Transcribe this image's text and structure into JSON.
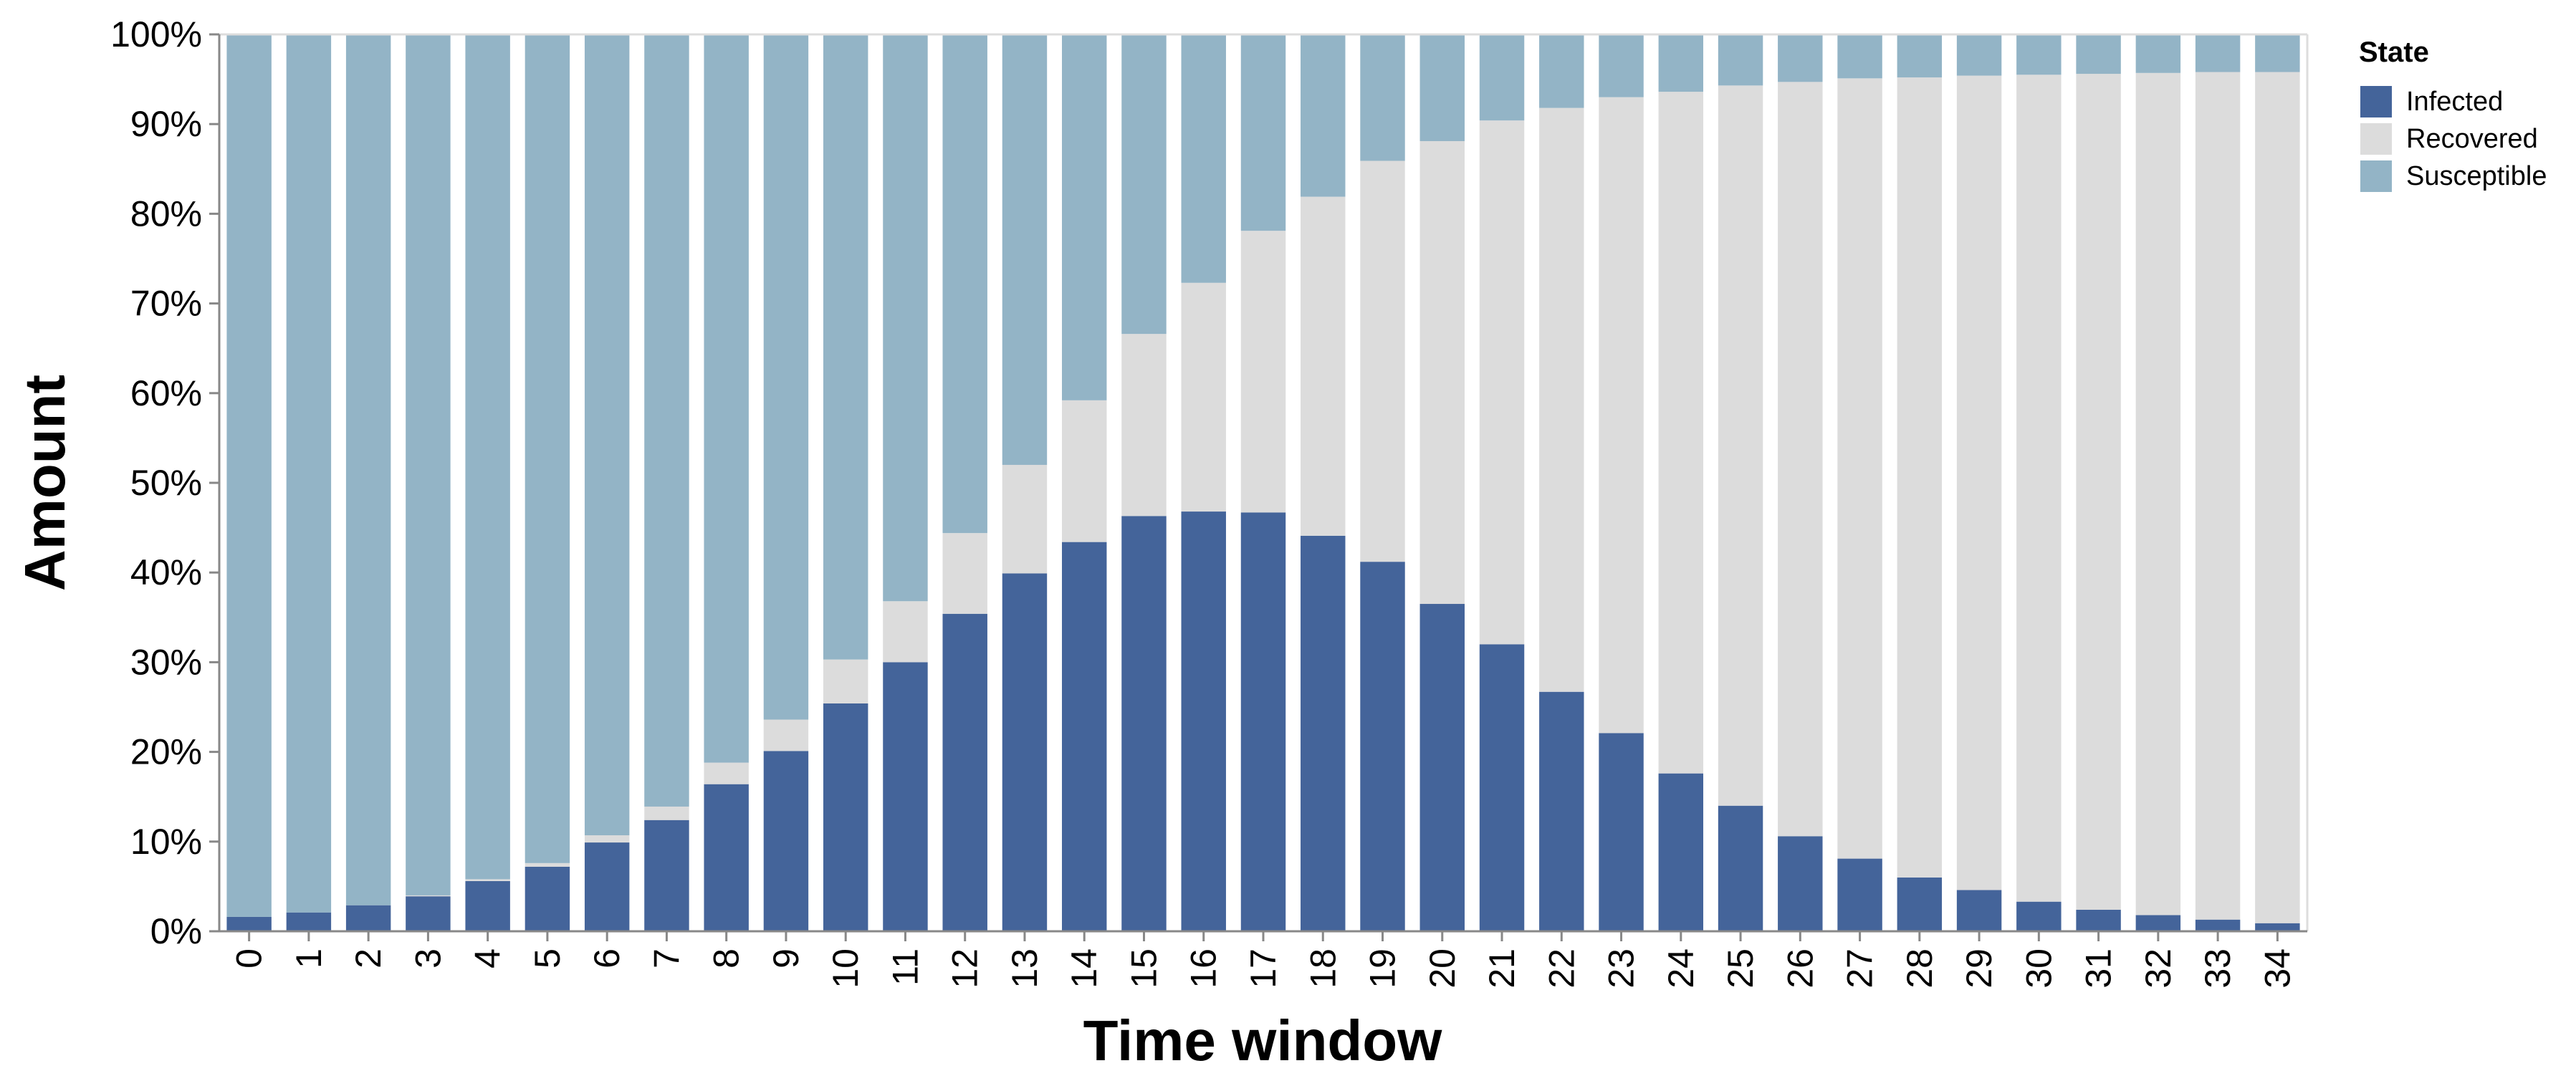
{
  "chart_data": {
    "type": "bar",
    "stacked": true,
    "normalized": true,
    "xlabel": "Time window",
    "ylabel": "Amount",
    "ylim": [
      0,
      100
    ],
    "y_ticks": [
      "0%",
      "10%",
      "20%",
      "30%",
      "40%",
      "50%",
      "60%",
      "70%",
      "80%",
      "90%",
      "100%"
    ],
    "grid": false,
    "legend": {
      "title": "State",
      "placement": "top-right"
    },
    "categories": [
      "0",
      "1",
      "2",
      "3",
      "4",
      "5",
      "6",
      "7",
      "8",
      "9",
      "10",
      "11",
      "12",
      "13",
      "14",
      "15",
      "16",
      "17",
      "18",
      "19",
      "20",
      "21",
      "22",
      "23",
      "24",
      "25",
      "26",
      "27",
      "28",
      "29",
      "30",
      "31",
      "32",
      "33",
      "34"
    ],
    "series": [
      {
        "name": "Infected",
        "color": "#44649a",
        "values": [
          1.6,
          2.1,
          2.9,
          3.9,
          5.6,
          7.2,
          9.9,
          12.4,
          16.4,
          20.1,
          25.4,
          30.0,
          35.4,
          39.9,
          43.4,
          46.3,
          46.8,
          46.7,
          44.1,
          41.2,
          36.5,
          32.0,
          26.7,
          22.1,
          17.6,
          14.0,
          10.6,
          8.1,
          6.0,
          4.6,
          3.3,
          2.4,
          1.8,
          1.3,
          0.9
        ]
      },
      {
        "name": "Recovered",
        "color": "#dcdcdc",
        "values": [
          0.0,
          0.0,
          0.0,
          0.1,
          0.2,
          0.4,
          0.8,
          1.5,
          2.4,
          3.5,
          4.9,
          6.8,
          9.0,
          12.1,
          15.8,
          20.3,
          25.5,
          31.4,
          37.8,
          44.7,
          51.6,
          58.4,
          65.1,
          70.9,
          76.0,
          80.3,
          84.1,
          87.0,
          89.2,
          90.8,
          92.2,
          93.2,
          93.9,
          94.5,
          94.9
        ]
      },
      {
        "name": "Susceptible",
        "color": "#93b4c6",
        "values": [
          98.4,
          97.9,
          97.1,
          96.0,
          94.2,
          92.4,
          89.3,
          86.1,
          81.2,
          76.4,
          69.7,
          63.2,
          55.6,
          48.0,
          40.8,
          33.4,
          27.7,
          21.9,
          18.1,
          14.1,
          11.9,
          9.6,
          8.2,
          7.0,
          6.4,
          5.7,
          5.3,
          4.9,
          4.8,
          4.6,
          4.5,
          4.4,
          4.3,
          4.2,
          4.2
        ]
      }
    ]
  }
}
